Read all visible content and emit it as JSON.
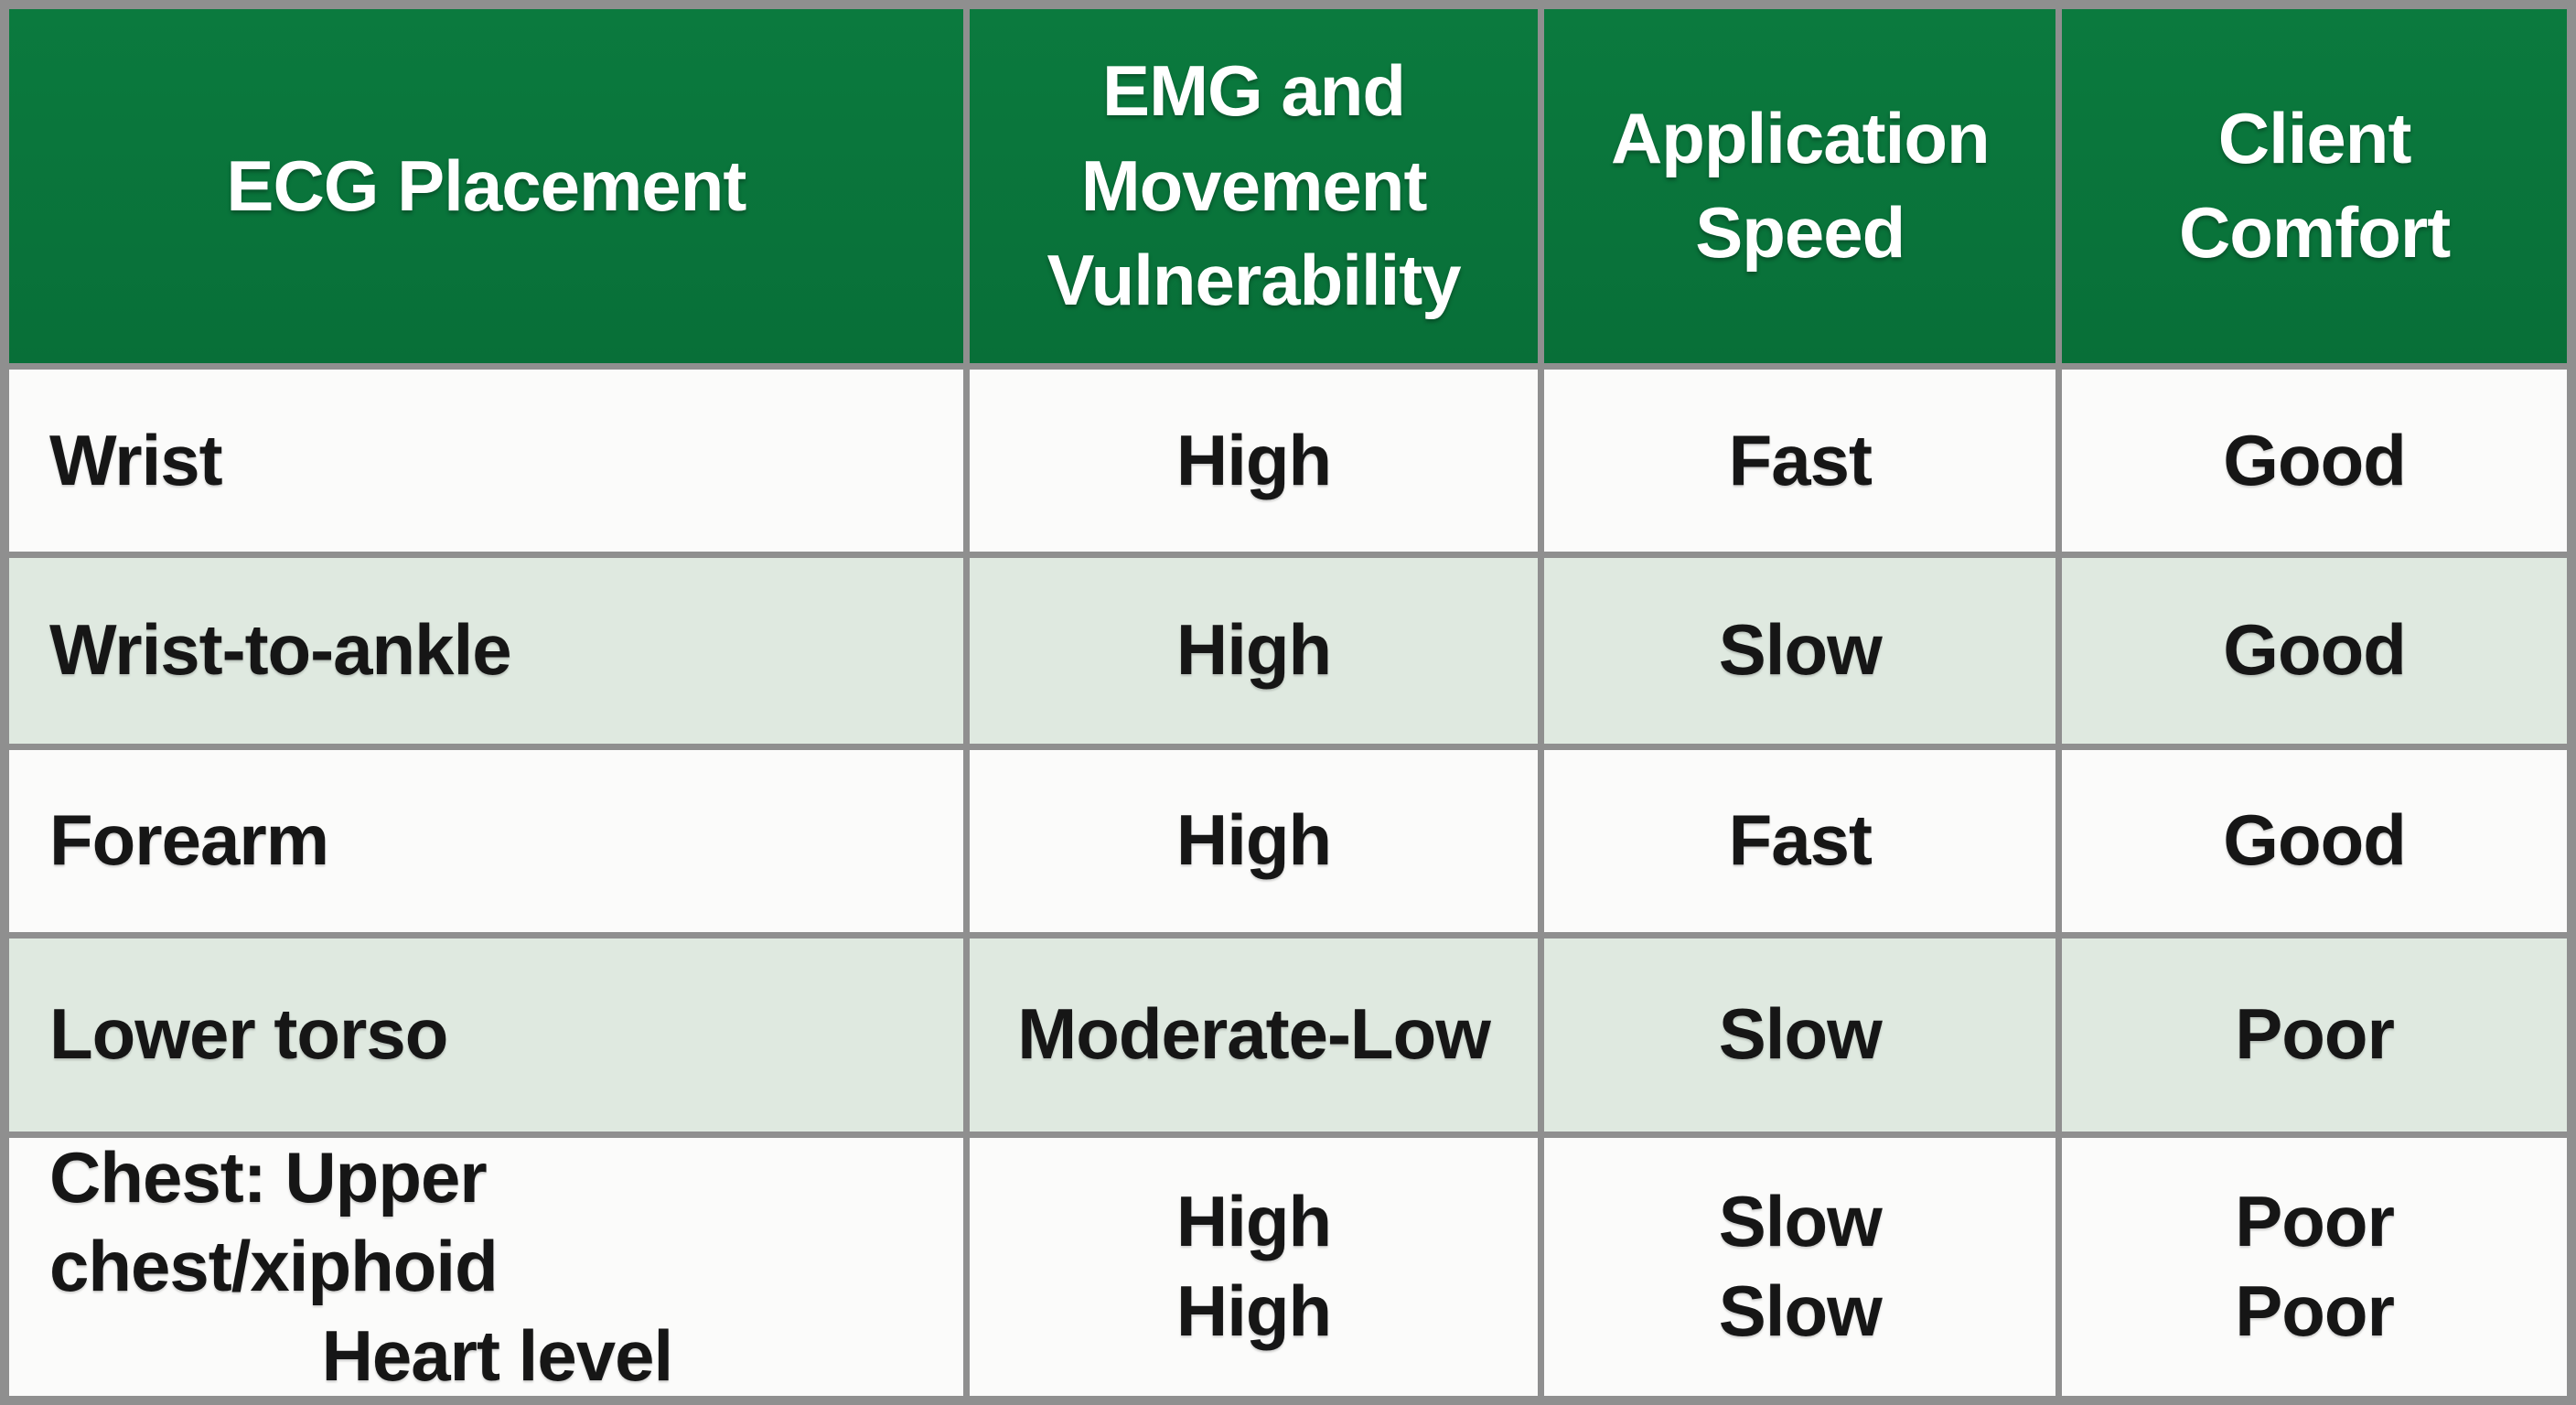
{
  "colors": {
    "header_bg": "#0b7a3e",
    "header_bg_deep": "#086f38",
    "header_text": "#ffffff",
    "row_bg": "#fbfbfa",
    "row_alt_bg": "#dfe9e0",
    "border": "#8f8f8f",
    "text": "#161616"
  },
  "chart_data": {
    "type": "table",
    "title": "",
    "columns": [
      "ECG Placement",
      "EMG and Movement Vulnerability",
      "Application Speed",
      "Client Comfort"
    ],
    "rows": [
      [
        [
          "Wrist"
        ],
        [
          "High"
        ],
        [
          "Fast"
        ],
        [
          "Good"
        ]
      ],
      [
        [
          "Wrist-to-ankle"
        ],
        [
          "High"
        ],
        [
          "Slow"
        ],
        [
          "Good"
        ]
      ],
      [
        [
          "Forearm"
        ],
        [
          "High"
        ],
        [
          "Fast"
        ],
        [
          "Good"
        ]
      ],
      [
        [
          "Lower torso"
        ],
        [
          "Moderate-Low"
        ],
        [
          "Slow"
        ],
        [
          "Poor"
        ]
      ],
      [
        [
          "Chest: Upper chest/xiphoid",
          "Heart level"
        ],
        [
          "High",
          "High"
        ],
        [
          "Slow",
          "Slow"
        ],
        [
          "Poor",
          "Poor"
        ]
      ]
    ],
    "layout": {
      "header_fill": "#0b7a3e",
      "zebra_striping": true,
      "grid": true
    }
  }
}
